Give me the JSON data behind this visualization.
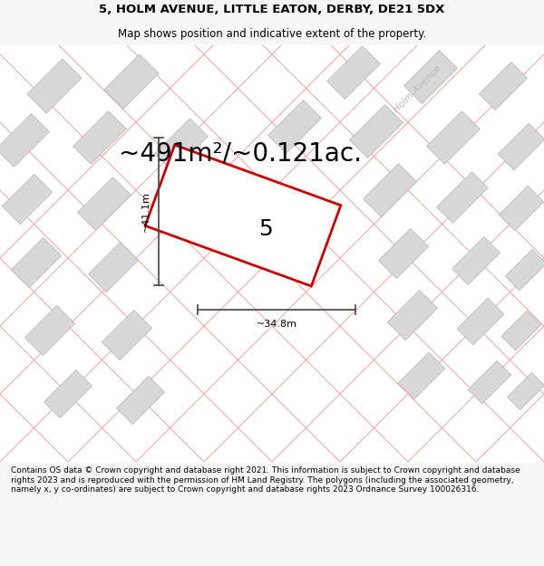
{
  "title_line1": "5, HOLM AVENUE, LITTLE EATON, DERBY, DE21 5DX",
  "title_line2": "Map shows position and indicative extent of the property.",
  "area_text": "~491m²/~0.121ac.",
  "plot_number": "5",
  "dim_width": "~34.8m",
  "dim_height": "~41.1m",
  "street_label": "Holm Avenue",
  "footer_text": "Contains OS data © Crown copyright and database right 2021. This information is subject to Crown copyright and database rights 2023 and is reproduced with the permission of HM Land Registry. The polygons (including the associated geometry, namely x, y co-ordinates) are subject to Crown copyright and database rights 2023 Ordnance Survey 100026316.",
  "bg_color": "#f7f7f7",
  "map_bg": "#ffffff",
  "plot_border_color": "#cc0000",
  "road_line_color": "#f0aaaa",
  "building_face_color": "#d8d8d8",
  "building_edge_color": "#bbbbbb",
  "dim_line_color": "#444444",
  "title_fontsize": 9.5,
  "subtitle_fontsize": 8.5,
  "area_fontsize": 20,
  "number_fontsize": 18,
  "dim_fontsize": 8,
  "street_fontsize": 7.5,
  "footer_fontsize": 6.5
}
